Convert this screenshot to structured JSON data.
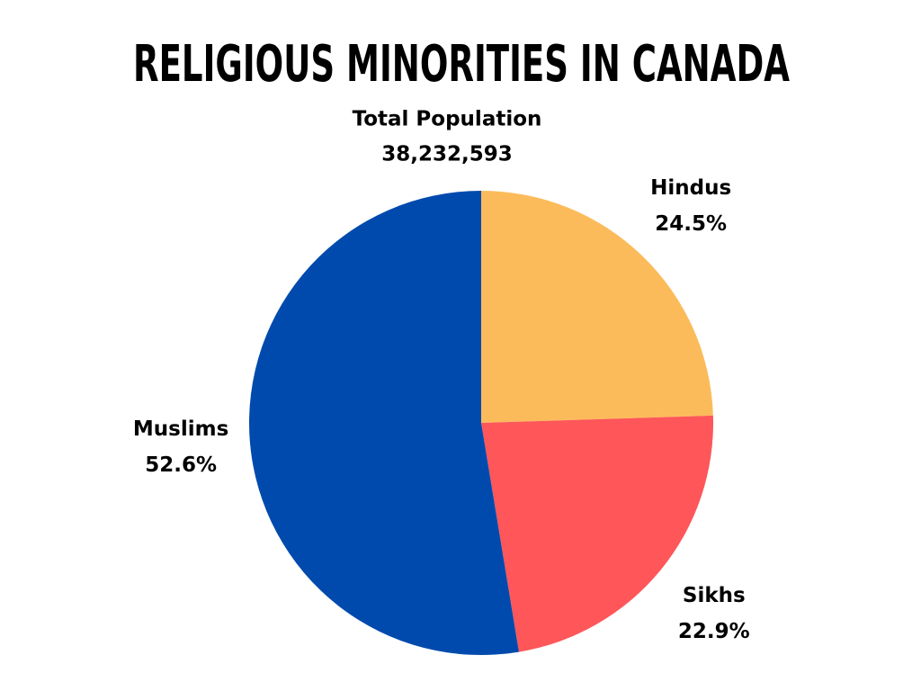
{
  "chart_data": {
    "type": "pie",
    "title": "RELIGIOUS MINORITIES IN CANADA",
    "subtitle": [
      "Total Population",
      "38,232,593"
    ],
    "categories": [
      "Hindus",
      "Sikhs",
      "Muslims"
    ],
    "values": [
      24.5,
      22.9,
      52.6
    ],
    "value_labels": [
      "24.5%",
      "22.9%",
      "52.6%"
    ],
    "colors": [
      "#fcbb5b",
      "#fe5659",
      "#004aad"
    ]
  }
}
